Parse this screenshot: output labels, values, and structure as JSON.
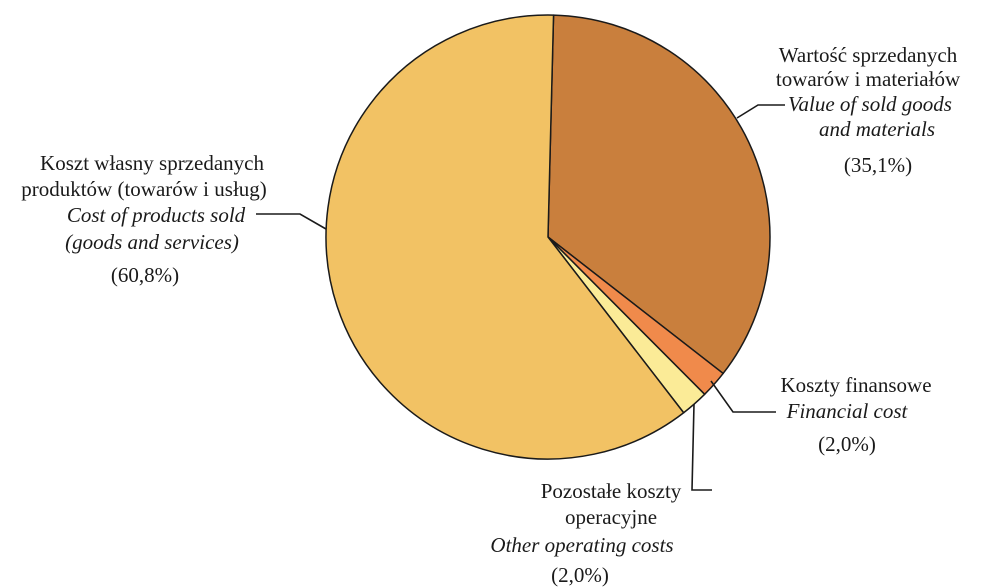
{
  "chart_data": {
    "type": "pie",
    "title": "",
    "slices": [
      {
        "label_pl": [
          "Wartość sprzedanych",
          "towarów i materiałów"
        ],
        "label_en": [
          "Value of sold goods",
          "and materials"
        ],
        "value_text": "(35,1%)",
        "value": 35.1,
        "color": "#C97F3D"
      },
      {
        "label_pl": [
          "Koszty finansowe"
        ],
        "label_en": [
          "Financial cost"
        ],
        "value_text": "(2,0%)",
        "value": 2.0,
        "color": "#F08A4B"
      },
      {
        "label_pl": [
          "Pozostałe koszty",
          "operacyjne"
        ],
        "label_en": [
          "Other operating costs"
        ],
        "value_text": "(2,0%)",
        "value": 2.0,
        "color": "#FBEB97"
      },
      {
        "label_pl": [
          "Koszt własny sprzedanych",
          "produktów (towarów i usług)"
        ],
        "label_en": [
          "Cost of products sold",
          "(goods and  services)"
        ],
        "value_text": "(60,8%)",
        "value": 60.8,
        "color": "#F2C264"
      }
    ]
  }
}
